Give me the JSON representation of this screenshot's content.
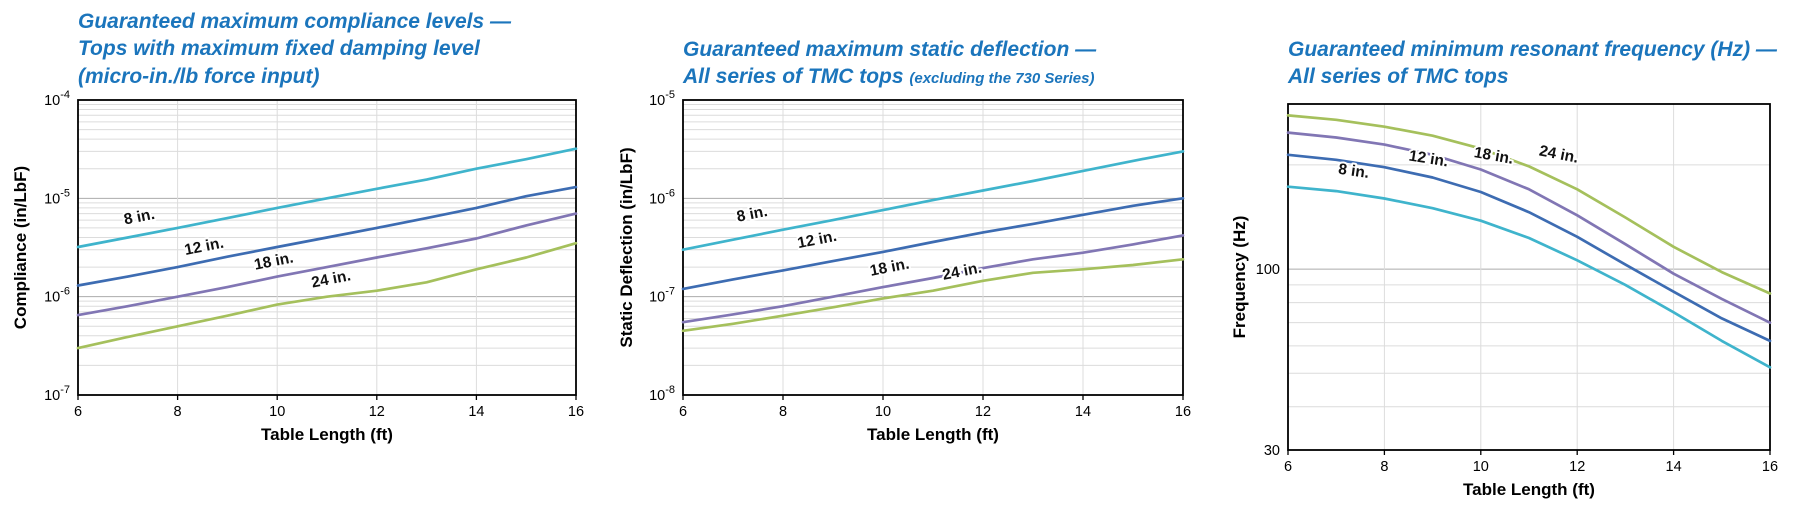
{
  "colors": {
    "title_blue": "#1B75BC",
    "series_8in": "#3FB4CC",
    "series_12in": "#3D6CB2",
    "series_18in": "#8176B4",
    "series_24in": "#A5C05C",
    "grid_minor": "#DCDCDC",
    "grid_major": "#ABABAB",
    "axis_box": "#000000"
  },
  "chart_data": [
    {
      "type": "line",
      "title_lines": [
        "Guaranteed maximum compliance levels —",
        "Tops with maximum fixed damping level",
        "(micro-in./lb force input)"
      ],
      "xlabel": "Table Length (ft)",
      "ylabel": "Compliance (in/LbF)",
      "xscale": "linear",
      "yscale": "log",
      "xlim": [
        6,
        16
      ],
      "ylim": [
        1e-07,
        0.0001
      ],
      "x_ticks": [
        6,
        8,
        10,
        12,
        14,
        16
      ],
      "y_ticks": [
        1e-07,
        1e-06,
        1e-05,
        0.0001
      ],
      "y_tick_labels": [
        "10^-7",
        "10^-6",
        "10^-5",
        "10^-4"
      ],
      "grid": true,
      "x": [
        6,
        7,
        8,
        9,
        10,
        11,
        12,
        13,
        14,
        15,
        16
      ],
      "series": [
        {
          "name": "8 in.",
          "color": "#3FB4CC",
          "values": [
            3.2e-06,
            4e-06,
            5e-06,
            6.3e-06,
            8e-06,
            1e-05,
            1.25e-05,
            1.55e-05,
            2e-05,
            2.5e-05,
            3.2e-05
          ],
          "label": {
            "x": 7.25,
            "y": 5.8e-06,
            "rot": -11
          }
        },
        {
          "name": "12 in.",
          "color": "#3D6CB2",
          "values": [
            1.3e-06,
            1.6e-06,
            2e-06,
            2.55e-06,
            3.2e-06,
            4e-06,
            5e-06,
            6.3e-06,
            8e-06,
            1.05e-05,
            1.3e-05
          ],
          "label": {
            "x": 8.55,
            "y": 2.9e-06,
            "rot": -11
          }
        },
        {
          "name": "18 in.",
          "color": "#8176B4",
          "values": [
            6.5e-07,
            8e-07,
            1e-06,
            1.25e-06,
            1.6e-06,
            2e-06,
            2.5e-06,
            3.1e-06,
            3.9e-06,
            5.3e-06,
            7e-06
          ],
          "label": {
            "x": 9.95,
            "y": 2.05e-06,
            "rot": -11
          }
        },
        {
          "name": "24 in.",
          "color": "#A5C05C",
          "values": [
            3e-07,
            3.9e-07,
            5e-07,
            6.4e-07,
            8.3e-07,
            1e-06,
            1.15e-06,
            1.4e-06,
            1.9e-06,
            2.5e-06,
            3.5e-06
          ],
          "label": {
            "x": 11.1,
            "y": 1.35e-06,
            "rot": -11
          }
        }
      ]
    },
    {
      "type": "line",
      "title_lines": [
        "Guaranteed maximum static deflection —",
        "All series of TMC tops"
      ],
      "title_note": "(excluding the 730 Series)",
      "xlabel": "Table Length (ft)",
      "ylabel": "Static Deflection (in/LbF)",
      "xscale": "linear",
      "yscale": "log",
      "xlim": [
        6,
        16
      ],
      "ylim": [
        1e-08,
        1e-05
      ],
      "x_ticks": [
        6,
        8,
        10,
        12,
        14,
        16
      ],
      "y_ticks": [
        1e-08,
        1e-07,
        1e-06,
        1e-05
      ],
      "y_tick_labels": [
        "10^-8",
        "10^-7",
        "10^-6",
        "10^-5"
      ],
      "grid": true,
      "x": [
        6,
        7,
        8,
        9,
        10,
        11,
        12,
        13,
        14,
        15,
        16
      ],
      "series": [
        {
          "name": "8 in.",
          "color": "#3FB4CC",
          "values": [
            3e-07,
            3.8e-07,
            4.8e-07,
            6e-07,
            7.6e-07,
            9.6e-07,
            1.2e-06,
            1.5e-06,
            1.9e-06,
            2.4e-06,
            3e-06
          ],
          "label": {
            "x": 7.4,
            "y": 6.2e-07,
            "rot": -11
          }
        },
        {
          "name": "12 in.",
          "color": "#3D6CB2",
          "values": [
            1.2e-07,
            1.5e-07,
            1.85e-07,
            2.3e-07,
            2.85e-07,
            3.6e-07,
            4.5e-07,
            5.5e-07,
            6.8e-07,
            8.4e-07,
            1e-06
          ],
          "label": {
            "x": 8.7,
            "y": 3.4e-07,
            "rot": -11
          }
        },
        {
          "name": "18 in.",
          "color": "#8176B4",
          "values": [
            5.5e-08,
            6.6e-08,
            8e-08,
            1e-07,
            1.25e-07,
            1.55e-07,
            1.95e-07,
            2.4e-07,
            2.8e-07,
            3.4e-07,
            4.2e-07
          ],
          "label": {
            "x": 10.15,
            "y": 1.78e-07,
            "rot": -11
          }
        },
        {
          "name": "24 in.",
          "color": "#A5C05C",
          "values": [
            4.5e-08,
            5.3e-08,
            6.4e-08,
            7.8e-08,
            9.6e-08,
            1.15e-07,
            1.45e-07,
            1.75e-07,
            1.9e-07,
            2.1e-07,
            2.4e-07
          ],
          "label": {
            "x": 11.6,
            "y": 1.62e-07,
            "rot": -11
          }
        }
      ]
    },
    {
      "type": "line",
      "title_lines": [
        "Guaranteed minimum resonant frequency (Hz) —",
        "All series of TMC tops"
      ],
      "xlabel": "Table Length (ft)",
      "ylabel": "Frequency (Hz)",
      "xscale": "linear",
      "yscale": "log",
      "xlim": [
        6,
        16
      ],
      "ylim": [
        30,
        300
      ],
      "x_ticks": [
        6,
        8,
        10,
        12,
        14,
        16
      ],
      "y_ticks": [
        30,
        100
      ],
      "y_tick_labels": [
        "30",
        "100"
      ],
      "grid": true,
      "x": [
        6,
        7,
        8,
        9,
        10,
        11,
        12,
        13,
        14,
        15,
        16
      ],
      "series": [
        {
          "name": "8 in.",
          "color": "#3FB4CC",
          "values": [
            173,
            168,
            160,
            150,
            138,
            123,
            106,
            90,
            75,
            62,
            52
          ],
          "label": {
            "x": 7.35,
            "y": 186,
            "rot": 8
          }
        },
        {
          "name": "12 in.",
          "color": "#3D6CB2",
          "values": [
            214,
            207,
            197,
            184,
            167,
            146,
            124,
            103,
            86,
            72,
            62
          ],
          "label": {
            "x": 8.9,
            "y": 202,
            "rot": 9
          }
        },
        {
          "name": "18 in.",
          "color": "#8176B4",
          "values": [
            248,
            240,
            229,
            214,
            194,
            170,
            143,
            118,
            97,
            82,
            70
          ],
          "label": {
            "x": 10.25,
            "y": 206,
            "rot": 10
          }
        },
        {
          "name": "24 in.",
          "color": "#A5C05C",
          "values": [
            278,
            270,
            258,
            243,
            223,
            198,
            170,
            141,
            116,
            98,
            85
          ],
          "label": {
            "x": 11.6,
            "y": 208,
            "rot": 11
          }
        }
      ]
    }
  ]
}
